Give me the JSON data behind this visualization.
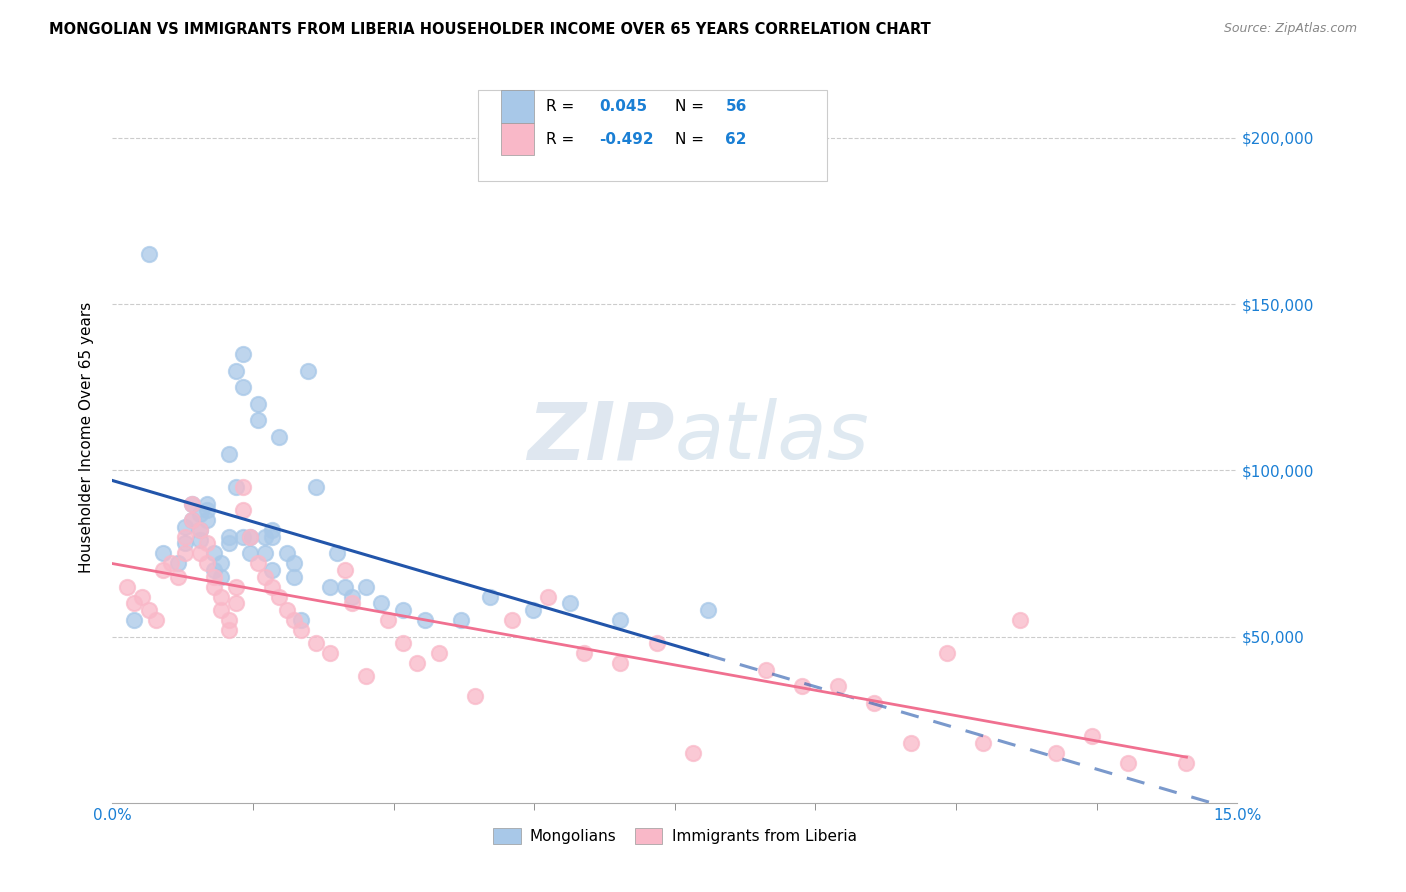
{
  "title": "MONGOLIAN VS IMMIGRANTS FROM LIBERIA HOUSEHOLDER INCOME OVER 65 YEARS CORRELATION CHART",
  "source": "Source: ZipAtlas.com",
  "ylabel": "Householder Income Over 65 years",
  "xlim": [
    0.0,
    0.155
  ],
  "ylim": [
    0,
    220000
  ],
  "yticks": [
    50000,
    100000,
    150000,
    200000
  ],
  "ytick_labels": [
    "$50,000",
    "$100,000",
    "$150,000",
    "$200,000"
  ],
  "mongolian_color": "#a8c8e8",
  "liberia_color": "#f9b8c8",
  "trend_mongolian_color": "#2255aa",
  "trend_liberia_color": "#f07090",
  "background_color": "#ffffff",
  "mongolian_x": [
    0.003,
    0.005,
    0.007,
    0.009,
    0.01,
    0.01,
    0.011,
    0.011,
    0.012,
    0.012,
    0.012,
    0.013,
    0.013,
    0.013,
    0.014,
    0.014,
    0.015,
    0.015,
    0.016,
    0.016,
    0.016,
    0.017,
    0.017,
    0.018,
    0.018,
    0.018,
    0.019,
    0.019,
    0.02,
    0.02,
    0.021,
    0.021,
    0.022,
    0.022,
    0.022,
    0.023,
    0.024,
    0.025,
    0.025,
    0.026,
    0.027,
    0.028,
    0.03,
    0.031,
    0.032,
    0.033,
    0.035,
    0.037,
    0.04,
    0.043,
    0.048,
    0.052,
    0.058,
    0.063,
    0.07,
    0.082
  ],
  "mongolian_y": [
    55000,
    165000,
    75000,
    72000,
    78000,
    83000,
    85000,
    90000,
    87000,
    82000,
    79000,
    88000,
    85000,
    90000,
    70000,
    75000,
    68000,
    72000,
    80000,
    78000,
    105000,
    95000,
    130000,
    125000,
    135000,
    80000,
    75000,
    80000,
    120000,
    115000,
    75000,
    80000,
    70000,
    82000,
    80000,
    110000,
    75000,
    68000,
    72000,
    55000,
    130000,
    95000,
    65000,
    75000,
    65000,
    62000,
    65000,
    60000,
    58000,
    55000,
    55000,
    62000,
    58000,
    60000,
    55000,
    58000
  ],
  "liberia_x": [
    0.002,
    0.003,
    0.004,
    0.005,
    0.006,
    0.007,
    0.008,
    0.009,
    0.01,
    0.01,
    0.011,
    0.011,
    0.012,
    0.012,
    0.013,
    0.013,
    0.014,
    0.014,
    0.015,
    0.015,
    0.016,
    0.016,
    0.017,
    0.017,
    0.018,
    0.018,
    0.019,
    0.02,
    0.021,
    0.022,
    0.023,
    0.024,
    0.025,
    0.026,
    0.028,
    0.03,
    0.032,
    0.033,
    0.035,
    0.038,
    0.04,
    0.042,
    0.045,
    0.05,
    0.055,
    0.06,
    0.065,
    0.07,
    0.075,
    0.08,
    0.09,
    0.095,
    0.1,
    0.105,
    0.11,
    0.115,
    0.12,
    0.125,
    0.13,
    0.135,
    0.14,
    0.148
  ],
  "liberia_y": [
    65000,
    60000,
    62000,
    58000,
    55000,
    70000,
    72000,
    68000,
    75000,
    80000,
    85000,
    90000,
    75000,
    82000,
    78000,
    72000,
    68000,
    65000,
    62000,
    58000,
    55000,
    52000,
    60000,
    65000,
    88000,
    95000,
    80000,
    72000,
    68000,
    65000,
    62000,
    58000,
    55000,
    52000,
    48000,
    45000,
    70000,
    60000,
    38000,
    55000,
    48000,
    42000,
    45000,
    32000,
    55000,
    62000,
    45000,
    42000,
    48000,
    15000,
    40000,
    35000,
    35000,
    30000,
    18000,
    45000,
    18000,
    55000,
    15000,
    20000,
    12000,
    12000
  ]
}
